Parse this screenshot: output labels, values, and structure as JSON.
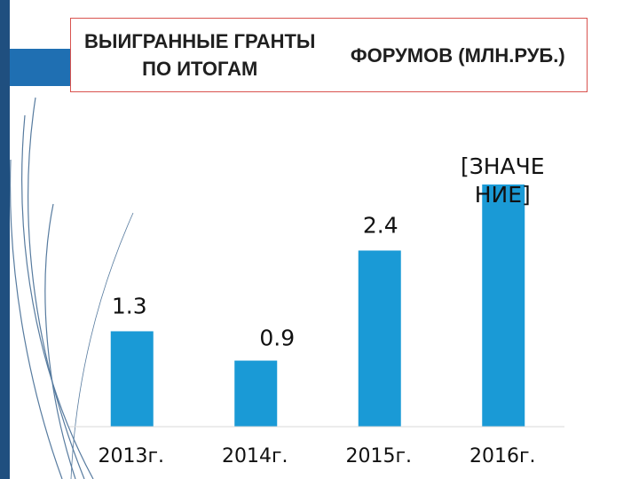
{
  "slide": {
    "title_line1": "ВЫИГРАННЫЕ ГРАНТЫ ПО ИТОГАМ",
    "title_line2": "ФОРУМОВ (МЛН.РУБ.)",
    "accent_color": "#1f4f7f",
    "border_color": "#d9534f"
  },
  "chart_data": {
    "type": "bar",
    "title": "ВЫИГРАННЫЕ ГРАНТЫ ПО ИТОГАМ ФОРУМОВ (МЛН.РУБ.)",
    "categories": [
      "2013г.",
      "2014г.",
      "2015г.",
      "2016г."
    ],
    "values": [
      1.3,
      0.9,
      2.4,
      3.3
    ],
    "data_labels": [
      "1.3",
      "0.9",
      "2.4",
      "[ЗНАЧЕ НИЕ]"
    ],
    "xlabel": "",
    "ylabel": "",
    "ylim": [
      0,
      3.3
    ],
    "grid": false,
    "legend": "none",
    "bar_color": "#1a9ad6"
  }
}
